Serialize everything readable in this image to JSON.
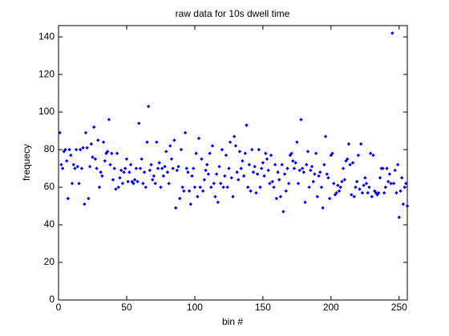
{
  "chart_data": {
    "type": "scatter",
    "title": "raw data for 10s dwell time",
    "x_label": "bin #",
    "y_label": "frequecy",
    "xlim": [
      0,
      256
    ],
    "ylim": [
      0,
      146
    ],
    "xticks": [
      0,
      50,
      100,
      150,
      200,
      250
    ],
    "yticks": [
      0,
      20,
      40,
      60,
      80,
      100,
      120,
      140
    ],
    "grid": false,
    "series": [
      {
        "color": "#0000ff",
        "x": [
          1,
          2,
          3,
          4,
          5,
          6,
          7,
          8,
          9,
          10,
          11,
          12,
          13,
          14,
          15,
          16,
          17,
          18,
          19,
          20,
          21,
          22,
          23,
          24,
          25,
          26,
          27,
          28,
          29,
          30,
          31,
          32,
          33,
          34,
          35,
          36,
          37,
          38,
          39,
          40,
          41,
          42,
          43,
          44,
          45,
          46,
          47,
          48,
          49,
          50,
          51,
          52,
          53,
          54,
          55,
          56,
          57,
          58,
          59,
          60,
          61,
          62,
          63,
          64,
          65,
          66,
          67,
          68,
          69,
          70,
          71,
          72,
          73,
          74,
          75,
          76,
          77,
          78,
          79,
          80,
          81,
          82,
          83,
          84,
          85,
          86,
          87,
          88,
          89,
          90,
          91,
          92,
          93,
          94,
          95,
          96,
          97,
          98,
          99,
          100,
          101,
          102,
          103,
          104,
          105,
          106,
          107,
          108,
          109,
          110,
          111,
          112,
          113,
          114,
          115,
          116,
          117,
          118,
          119,
          120,
          121,
          122,
          123,
          124,
          125,
          126,
          127,
          128,
          129,
          130,
          131,
          132,
          133,
          134,
          135,
          136,
          137,
          138,
          139,
          140,
          141,
          142,
          143,
          144,
          145,
          146,
          147,
          148,
          149,
          150,
          151,
          152,
          153,
          154,
          155,
          156,
          157,
          158,
          159,
          160,
          161,
          162,
          163,
          164,
          165,
          166,
          167,
          168,
          169,
          170,
          171,
          172,
          173,
          174,
          175,
          176,
          177,
          178,
          179,
          180,
          181,
          182,
          183,
          184,
          185,
          186,
          187,
          188,
          189,
          190,
          191,
          192,
          193,
          194,
          195,
          196,
          197,
          198,
          199,
          200,
          201,
          202,
          203,
          204,
          205,
          206,
          207,
          208,
          209,
          210,
          211,
          212,
          213,
          214,
          215,
          216,
          217,
          218,
          219,
          220,
          221,
          222,
          223,
          224,
          225,
          226,
          227,
          228,
          229,
          230,
          231,
          232,
          233,
          234,
          235,
          236,
          237,
          238,
          239,
          240,
          241,
          242,
          243,
          244,
          245,
          246,
          247,
          248,
          249,
          250,
          251,
          252,
          253,
          254,
          255,
          256
        ],
        "values": [
          89,
          72,
          70,
          79,
          80,
          74,
          54,
          80,
          77,
          62,
          72,
          70,
          80,
          71,
          62,
          80,
          70,
          81,
          51,
          89,
          81,
          54,
          71,
          83,
          76,
          92,
          75,
          70,
          85,
          60,
          68,
          66,
          84,
          74,
          78,
          79,
          96,
          72,
          78,
          64,
          70,
          59,
          78,
          60,
          65,
          69,
          62,
          68,
          70,
          75,
          63,
          68,
          72,
          63,
          62,
          64,
          70,
          63,
          94,
          70,
          75,
          62,
          68,
          60,
          84,
          103,
          69,
          72,
          64,
          66,
          62,
          84,
          70,
          73,
          60,
          70,
          66,
          71,
          79,
          68,
          62,
          82,
          75,
          70,
          85,
          49,
          69,
          71,
          54,
          80,
          60,
          58,
          89,
          70,
          68,
          58,
          51,
          66,
          70,
          60,
          78,
          55,
          86,
          60,
          75,
          58,
          64,
          69,
          72,
          67,
          78,
          60,
          82,
          62,
          55,
          67,
          52,
          71,
          62,
          80,
          60,
          66,
          77,
          60,
          70,
          84,
          65,
          55,
          87,
          82,
          68,
          64,
          79,
          70,
          74,
          66,
          78,
          93,
          60,
          72,
          58,
          80,
          68,
          71,
          57,
          67,
          80,
          60,
          70,
          73,
          66,
          78,
          75,
          69,
          62,
          77,
          63,
          60,
          72,
          54,
          68,
          64,
          55,
          72,
          47,
          67,
          58,
          70,
          62,
          77,
          78,
          74,
          70,
          73,
          84,
          62,
          69,
          96,
          70,
          68,
          52,
          72,
          79,
          60,
          69,
          71,
          63,
          67,
          78,
          55,
          66,
          68,
          60,
          49,
          72,
          87,
          67,
          65,
          54,
          77,
          78,
          62,
          56,
          57,
          61,
          58,
          60,
          63,
          70,
          64,
          74,
          75,
          83,
          72,
          56,
          73,
          55,
          60,
          63,
          77,
          59,
          83,
          57,
          61,
          65,
          62,
          57,
          60,
          78,
          55,
          77,
          58,
          57,
          56,
          57,
          65,
          70,
          70,
          57,
          60,
          70,
          63,
          67,
          62,
          142,
          62,
          69,
          57,
          72,
          44,
          58,
          65,
          51,
          60,
          62,
          50
        ]
      }
    ]
  }
}
